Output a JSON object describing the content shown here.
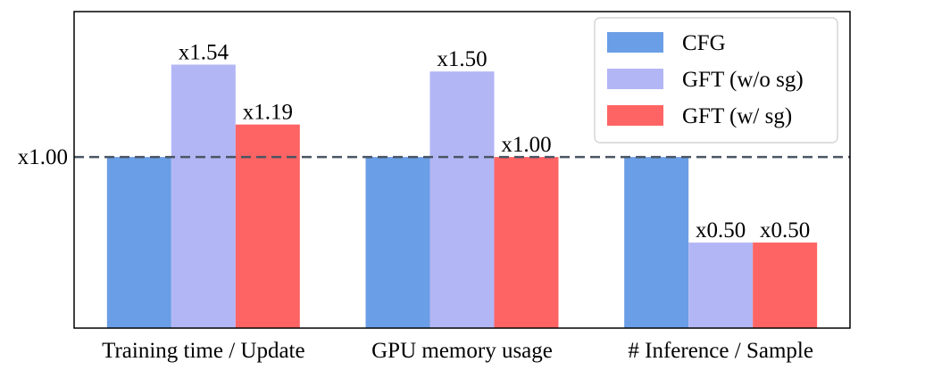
{
  "chart_data": {
    "type": "bar",
    "title": "",
    "xlabel": "",
    "ylabel": "",
    "categories": [
      "Training time / Update",
      "GPU memory usage",
      "# Inference / Sample"
    ],
    "series": [
      {
        "name": "CFG",
        "color": "#6a9ee6",
        "values": [
          1.0,
          1.0,
          1.0
        ],
        "labels": [
          "",
          "",
          ""
        ]
      },
      {
        "name": "GFT (w/o sg)",
        "color": "#b3b6f5",
        "values": [
          1.54,
          1.5,
          0.5
        ],
        "labels": [
          "x1.54",
          "x1.50",
          "x0.50"
        ]
      },
      {
        "name": "GFT (w/ sg)",
        "color": "#ff6464",
        "values": [
          1.19,
          1.0,
          0.5
        ],
        "labels": [
          "x1.19",
          "x1.00",
          "x0.50"
        ]
      }
    ],
    "ylim": [
      0,
      1.85
    ],
    "reference_line": {
      "value": 1.0,
      "label": "x1.00",
      "color": "#4a5564"
    },
    "legend_position": "top-right",
    "grid": false
  }
}
